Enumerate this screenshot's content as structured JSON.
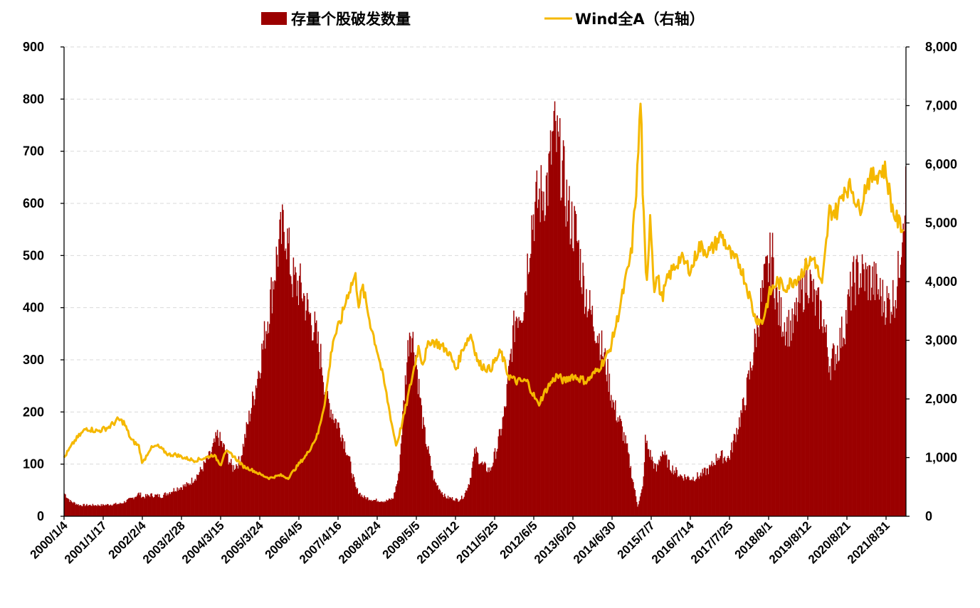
{
  "chart_data": {
    "type": "area",
    "legend": [
      {
        "label": "存量个股破发数量",
        "color": "#9b0000",
        "kind": "bar"
      },
      {
        "label": "Wind全A（右轴）",
        "color": "#f5b800",
        "kind": "line"
      }
    ],
    "legend_position": "top",
    "x_tick_labels": [
      "2000/1/4",
      "2001/1/17",
      "2002/2/4",
      "2003/2/28",
      "2004/3/15",
      "2005/3/24",
      "2006/4/5",
      "2007/4/16",
      "2008/4/24",
      "2009/5/5",
      "2010/5/12",
      "2011/5/25",
      "2012/6/5",
      "2013/6/20",
      "2014/6/30",
      "2015/7/7",
      "2016/7/14",
      "2017/7/25",
      "2018/8/1",
      "2019/8/12",
      "2020/8/21",
      "2021/8/31"
    ],
    "left_axis": {
      "min": 0,
      "max": 900,
      "ticks": [
        "0",
        "100",
        "200",
        "300",
        "400",
        "500",
        "600",
        "700",
        "800",
        "900"
      ]
    },
    "right_axis": {
      "min": 0,
      "max": 8000,
      "ticks": [
        "0",
        "1,000",
        "2,000",
        "3,000",
        "4,000",
        "5,000",
        "6,000",
        "7,000",
        "8,000"
      ]
    },
    "grid": "horizontal-dashed",
    "x_range": [
      2000.0,
      2022.55
    ],
    "series": [
      {
        "name": "存量个股破发数量",
        "axis": "left",
        "x": [
          2000.0,
          2000.15,
          2000.4,
          2001.0,
          2001.5,
          2001.8,
          2002.0,
          2002.1,
          2002.3,
          2002.6,
          2003.0,
          2003.3,
          2003.6,
          2003.9,
          2004.1,
          2004.3,
          2004.5,
          2004.7,
          2004.9,
          2005.1,
          2005.3,
          2005.5,
          2005.7,
          2005.9,
          2006.1,
          2006.2,
          2006.35,
          2006.5,
          2006.7,
          2006.9,
          2007.0,
          2007.2,
          2007.4,
          2007.6,
          2007.8,
          2008.0,
          2008.3,
          2008.6,
          2008.8,
          2008.95,
          2009.1,
          2009.25,
          2009.4,
          2009.6,
          2009.9,
          2010.2,
          2010.4,
          2010.55,
          2010.7,
          2010.85,
          2011.0,
          2011.2,
          2011.4,
          2011.6,
          2011.8,
          2012.0,
          2012.1,
          2012.3,
          2012.5,
          2012.65,
          2012.8,
          2012.95,
          2013.1,
          2013.3,
          2013.5,
          2013.7,
          2013.9,
          2014.1,
          2014.3,
          2014.5,
          2014.7,
          2014.9,
          2015.05,
          2015.2,
          2015.35,
          2015.5,
          2015.55,
          2015.7,
          2015.85,
          2016.0,
          2016.2,
          2016.5,
          2016.8,
          2017.0,
          2017.3,
          2017.5,
          2017.8,
          2018.0,
          2018.2,
          2018.4,
          2018.6,
          2018.8,
          2018.95,
          2019.1,
          2019.3,
          2019.5,
          2019.7,
          2019.9,
          2020.1,
          2020.3,
          2020.5,
          2020.7,
          2020.9,
          2021.1,
          2021.3,
          2021.5,
          2021.7,
          2021.9,
          2022.1,
          2022.3,
          2022.5
        ],
        "values": [
          45,
          30,
          22,
          22,
          25,
          35,
          45,
          38,
          42,
          40,
          55,
          62,
          85,
          120,
          160,
          130,
          95,
          110,
          180,
          250,
          330,
          420,
          520,
          580,
          470,
          460,
          450,
          410,
          370,
          300,
          240,
          200,
          170,
          120,
          55,
          38,
          32,
          30,
          35,
          80,
          240,
          380,
          320,
          180,
          70,
          38,
          35,
          32,
          40,
          70,
          130,
          100,
          90,
          140,
          210,
          350,
          400,
          420,
          580,
          620,
          640,
          660,
          760,
          700,
          600,
          560,
          460,
          400,
          360,
          300,
          220,
          180,
          140,
          80,
          20,
          60,
          150,
          120,
          90,
          130,
          100,
          80,
          75,
          80,
          95,
          120,
          115,
          170,
          220,
          300,
          400,
          480,
          520,
          410,
          380,
          370,
          430,
          480,
          420,
          400,
          300,
          330,
          380,
          460,
          480,
          470,
          460,
          430,
          420,
          450,
          640
        ]
      },
      {
        "name": "Wind全A（右轴）",
        "axis": "right",
        "x": [
          2000.0,
          2000.3,
          2000.6,
          2000.9,
          2001.2,
          2001.45,
          2001.6,
          2001.8,
          2002.0,
          2002.1,
          2002.3,
          2002.5,
          2002.8,
          2003.0,
          2003.2,
          2003.5,
          2003.8,
          2004.0,
          2004.2,
          2004.3,
          2004.5,
          2004.8,
          2005.0,
          2005.3,
          2005.5,
          2005.8,
          2006.0,
          2006.3,
          2006.5,
          2006.8,
          2007.0,
          2007.2,
          2007.4,
          2007.6,
          2007.8,
          2007.9,
          2008.0,
          2008.2,
          2008.4,
          2008.6,
          2008.8,
          2008.9,
          2009.1,
          2009.3,
          2009.5,
          2009.6,
          2009.8,
          2010.0,
          2010.3,
          2010.5,
          2010.7,
          2010.9,
          2011.1,
          2011.4,
          2011.7,
          2011.9,
          2012.1,
          2012.4,
          2012.7,
          2012.95,
          2013.2,
          2013.4,
          2013.6,
          2013.8,
          2014.0,
          2014.3,
          2014.6,
          2014.8,
          2015.0,
          2015.2,
          2015.35,
          2015.45,
          2015.5,
          2015.6,
          2015.7,
          2015.8,
          2015.9,
          2016.0,
          2016.2,
          2016.5,
          2016.8,
          2017.0,
          2017.3,
          2017.6,
          2017.9,
          2018.1,
          2018.3,
          2018.5,
          2018.7,
          2018.9,
          2019.1,
          2019.3,
          2019.5,
          2019.7,
          2019.9,
          2020.1,
          2020.3,
          2020.5,
          2020.7,
          2020.9,
          2021.1,
          2021.3,
          2021.5,
          2021.7,
          2021.9,
          2022.0,
          2022.2,
          2022.35,
          2022.5
        ],
        "values": [
          1000,
          1300,
          1500,
          1450,
          1520,
          1650,
          1600,
          1300,
          1200,
          900,
          1150,
          1200,
          1050,
          1050,
          1000,
          950,
          1000,
          1050,
          880,
          1100,
          1050,
          850,
          800,
          700,
          650,
          700,
          650,
          900,
          1050,
          1400,
          2000,
          3000,
          3300,
          3800,
          4100,
          3600,
          3900,
          3300,
          2800,
          2200,
          1500,
          1200,
          1700,
          2300,
          2900,
          2600,
          3000,
          2950,
          2800,
          2500,
          2900,
          3100,
          2600,
          2500,
          2800,
          2400,
          2300,
          2300,
          1900,
          2200,
          2400,
          2300,
          2400,
          2350,
          2300,
          2500,
          2800,
          3300,
          3900,
          4500,
          5800,
          7200,
          5500,
          3800,
          5200,
          3900,
          4100,
          3700,
          4100,
          4400,
          4200,
          4600,
          4500,
          4800,
          4400,
          4300,
          3900,
          3400,
          3300,
          3800,
          4000,
          3900,
          4000,
          4100,
          4300,
          4400,
          3900,
          5200,
          5200,
          5600,
          5600,
          5200,
          5700,
          5800,
          5900,
          5900,
          5200,
          5000,
          4900
        ]
      }
    ]
  }
}
